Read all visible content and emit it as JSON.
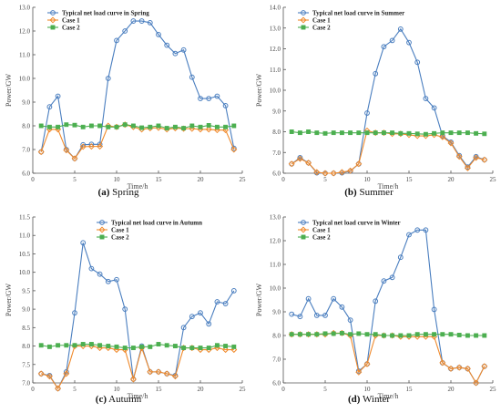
{
  "chart_data": [
    {
      "type": "line",
      "caption_letter": "(a)",
      "caption_text": " Spring",
      "xlabel": "Time/h",
      "ylabel": "Power/GW",
      "xlim": [
        0,
        25
      ],
      "ylim": [
        6.0,
        13.0
      ],
      "xticks": [
        0,
        5,
        10,
        15,
        20,
        25
      ],
      "yticks": [
        6.0,
        7.0,
        8.0,
        9.0,
        10.0,
        11.0,
        12.0,
        13.0
      ],
      "ytick_labels": [
        "6.0",
        "7.0",
        "8.0",
        "9.0",
        "10.0",
        "11.0",
        "12.0",
        "13.0"
      ],
      "legend_position": "top-left",
      "x": [
        1,
        2,
        3,
        4,
        5,
        6,
        7,
        8,
        9,
        10,
        11,
        12,
        13,
        14,
        15,
        16,
        17,
        18,
        19,
        20,
        21,
        22,
        23,
        24
      ],
      "series": [
        {
          "name": "Typical net load curve in Spring",
          "color": "#4a7ebf",
          "marker": "circle",
          "values": [
            6.9,
            8.8,
            9.25,
            7.0,
            6.62,
            7.2,
            7.22,
            7.22,
            10.0,
            11.6,
            12.0,
            12.42,
            12.42,
            12.35,
            11.85,
            11.4,
            11.05,
            11.2,
            10.05,
            9.15,
            9.15,
            9.25,
            8.85,
            7.05
          ]
        },
        {
          "name": "Case 1",
          "color": "#f08a2c",
          "marker": "diamond",
          "values": [
            6.9,
            7.85,
            7.85,
            6.97,
            6.62,
            7.12,
            7.13,
            7.13,
            8.0,
            7.95,
            8.05,
            7.95,
            7.85,
            7.9,
            7.92,
            7.85,
            7.9,
            7.88,
            7.88,
            7.85,
            7.85,
            7.82,
            7.82,
            7.0
          ]
        },
        {
          "name": "Case 2",
          "color": "#4caf50",
          "marker": "square",
          "values": [
            8.0,
            7.95,
            7.95,
            8.05,
            8.03,
            7.95,
            8.0,
            8.0,
            7.95,
            7.95,
            8.05,
            8.0,
            7.92,
            7.95,
            8.0,
            7.9,
            7.95,
            7.9,
            8.0,
            7.95,
            8.02,
            7.95,
            7.95,
            8.0
          ]
        }
      ]
    },
    {
      "type": "line",
      "caption_letter": "(b)",
      "caption_text": " Summer",
      "xlabel": "Time/h",
      "ylabel": "Power/GW",
      "xlim": [
        0,
        25
      ],
      "ylim": [
        6.0,
        14.0
      ],
      "xticks": [
        0,
        5,
        10,
        15,
        20,
        25
      ],
      "yticks": [
        6.0,
        7.0,
        8.0,
        9.0,
        10.0,
        11.0,
        12.0,
        13.0,
        14.0
      ],
      "ytick_labels": [
        "6.0",
        "7.0",
        "8.0",
        "9.0",
        "10.0",
        "11.0",
        "12.0",
        "13.0",
        "14.0"
      ],
      "legend_position": "top-left",
      "x": [
        1,
        2,
        3,
        4,
        5,
        6,
        7,
        8,
        9,
        10,
        11,
        12,
        13,
        14,
        15,
        16,
        17,
        18,
        19,
        20,
        21,
        22,
        23,
        24
      ],
      "series": [
        {
          "name": "Typical net load curve in Summer",
          "color": "#4a7ebf",
          "marker": "circle",
          "values": [
            6.45,
            6.75,
            6.5,
            6.02,
            6.0,
            6.0,
            6.02,
            6.1,
            6.45,
            8.9,
            10.8,
            12.1,
            12.4,
            12.95,
            12.3,
            11.35,
            9.6,
            9.15,
            7.8,
            7.5,
            6.85,
            6.3,
            6.8,
            6.65
          ]
        },
        {
          "name": "Case 1",
          "color": "#f08a2c",
          "marker": "diamond",
          "values": [
            6.45,
            6.7,
            6.5,
            6.05,
            6.0,
            6.0,
            6.05,
            6.12,
            6.45,
            8.05,
            7.95,
            7.95,
            7.9,
            7.9,
            7.85,
            7.8,
            7.8,
            7.85,
            7.75,
            7.45,
            6.8,
            6.25,
            6.75,
            6.65
          ]
        },
        {
          "name": "Case 2",
          "color": "#4caf50",
          "marker": "square",
          "values": [
            8.0,
            7.95,
            8.0,
            7.95,
            7.92,
            7.95,
            7.95,
            7.95,
            7.95,
            7.95,
            7.95,
            7.95,
            7.95,
            7.92,
            7.92,
            7.9,
            7.88,
            7.92,
            7.95,
            7.95,
            7.95,
            7.95,
            7.92,
            7.9
          ]
        }
      ]
    },
    {
      "type": "line",
      "caption_letter": "(c)",
      "caption_text": " Autumn",
      "xlabel": "Time/h",
      "ylabel": "Power/GW",
      "xlim": [
        0,
        25
      ],
      "ylim": [
        7.0,
        11.5
      ],
      "xticks": [
        0,
        5,
        10,
        15,
        20,
        25
      ],
      "yticks": [
        7.0,
        7.5,
        8.0,
        8.5,
        9.0,
        9.5,
        10.0,
        10.5,
        11.0,
        11.5
      ],
      "ytick_labels": [
        "7.0",
        "7.5",
        "8.0",
        "8.5",
        "9.0",
        "9.5",
        "10.0",
        "10.5",
        "11.0",
        "11.5"
      ],
      "legend_position": "top-right",
      "x": [
        1,
        2,
        3,
        4,
        5,
        6,
        7,
        8,
        9,
        10,
        11,
        12,
        13,
        14,
        15,
        16,
        17,
        18,
        19,
        20,
        21,
        22,
        23,
        24
      ],
      "series": [
        {
          "name": "Typical net load curve in Autumn",
          "color": "#4a7ebf",
          "marker": "circle",
          "values": [
            7.25,
            7.2,
            6.85,
            7.3,
            8.9,
            10.8,
            10.1,
            9.95,
            9.75,
            9.8,
            9.0,
            7.1,
            8.0,
            7.3,
            7.3,
            7.25,
            7.2,
            8.5,
            8.8,
            8.9,
            8.6,
            9.2,
            9.15,
            9.5
          ]
        },
        {
          "name": "Case 1",
          "color": "#f08a2c",
          "marker": "diamond",
          "values": [
            7.25,
            7.18,
            6.85,
            7.25,
            8.0,
            8.0,
            8.0,
            7.95,
            7.95,
            7.9,
            7.9,
            7.1,
            7.95,
            7.3,
            7.3,
            7.25,
            7.18,
            7.95,
            7.95,
            7.9,
            7.9,
            7.95,
            7.9,
            7.9
          ]
        },
        {
          "name": "Case 2",
          "color": "#4caf50",
          "marker": "square",
          "values": [
            8.02,
            7.98,
            8.02,
            8.02,
            8.02,
            8.05,
            8.05,
            8.02,
            8.0,
            7.98,
            7.95,
            7.95,
            7.98,
            7.98,
            8.05,
            8.02,
            8.0,
            7.95,
            7.95,
            7.95,
            7.95,
            8.02,
            8.0,
            7.98
          ]
        }
      ]
    },
    {
      "type": "line",
      "caption_letter": "(d)",
      "caption_text": " Winter",
      "xlabel": "Time/h",
      "ylabel": "Power/GW",
      "xlim": [
        0,
        25
      ],
      "ylim": [
        6.0,
        13.0
      ],
      "xticks": [
        0,
        5,
        10,
        15,
        20,
        25
      ],
      "yticks": [
        6.0,
        7.0,
        8.0,
        9.0,
        10.0,
        11.0,
        12.0,
        13.0
      ],
      "ytick_labels": [
        "6.0",
        "7.0",
        "8.0",
        "9.0",
        "10.0",
        "11.0",
        "12.0",
        "13.0"
      ],
      "legend_position": "top-left",
      "x": [
        1,
        2,
        3,
        4,
        5,
        6,
        7,
        8,
        9,
        10,
        11,
        12,
        13,
        14,
        15,
        16,
        17,
        18,
        19,
        20,
        21,
        22,
        23,
        24
      ],
      "series": [
        {
          "name": "Typical net load curve in Winter",
          "color": "#4a7ebf",
          "marker": "circle",
          "values": [
            8.9,
            8.8,
            9.55,
            8.85,
            8.85,
            9.55,
            9.2,
            8.65,
            6.5,
            6.8,
            9.45,
            10.3,
            10.45,
            11.3,
            12.25,
            12.45,
            12.45,
            9.1,
            6.85,
            6.6,
            6.65,
            6.6,
            6.0,
            6.7
          ]
        },
        {
          "name": "Case 1",
          "color": "#f08a2c",
          "marker": "diamond",
          "values": [
            8.05,
            8.05,
            8.05,
            8.05,
            8.05,
            8.1,
            8.1,
            8.0,
            6.45,
            6.8,
            8.0,
            8.0,
            8.0,
            7.95,
            7.95,
            7.95,
            7.95,
            7.95,
            6.85,
            6.6,
            6.65,
            6.6,
            6.0,
            6.7
          ]
        },
        {
          "name": "Case 2",
          "color": "#4caf50",
          "marker": "square",
          "values": [
            8.05,
            8.05,
            8.05,
            8.05,
            8.08,
            8.08,
            8.1,
            8.05,
            8.08,
            8.05,
            8.05,
            8.0,
            8.0,
            8.0,
            8.0,
            8.05,
            8.05,
            8.05,
            8.05,
            8.05,
            8.02,
            8.0,
            8.0,
            8.0
          ]
        }
      ]
    }
  ]
}
